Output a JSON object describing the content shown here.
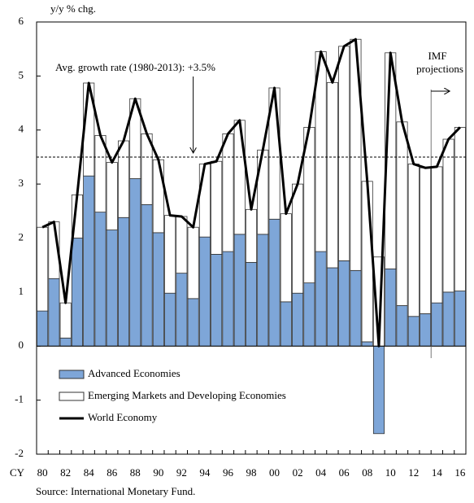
{
  "chart_data": {
    "type": "stacked-bar-line",
    "y_axis_label": "y/y % chg.",
    "x_axis_prefix": "CY",
    "annotation": "Avg. growth rate (1980-2013): +3.5%",
    "avg_line": 3.5,
    "projection_label": "IMF projections",
    "source": "Source:  International  Monetary Fund.",
    "categories": [
      "80",
      null,
      "82",
      null,
      "84",
      null,
      "86",
      null,
      "88",
      null,
      "90",
      null,
      "92",
      null,
      "94",
      null,
      "96",
      null,
      "98",
      null,
      "00",
      null,
      "02",
      null,
      "04",
      null,
      "06",
      null,
      "08",
      null,
      "10",
      null,
      "12",
      null,
      "14",
      null,
      "16"
    ],
    "series": [
      {
        "name": "Advanced Economies",
        "color": "#7ea6d8",
        "kind": "bar",
        "values": [
          0.65,
          1.25,
          0.15,
          2.0,
          3.15,
          2.48,
          2.15,
          2.38,
          3.1,
          2.62,
          2.1,
          0.98,
          1.35,
          0.88,
          2.02,
          1.7,
          1.75,
          2.07,
          1.55,
          2.07,
          2.35,
          0.82,
          0.98,
          1.17,
          1.75,
          1.45,
          1.58,
          1.4,
          0.08,
          -1.62,
          1.43,
          0.75,
          0.55,
          0.6,
          0.8,
          1.0,
          1.02
        ]
      },
      {
        "name": "Emerging Markets and Developing Economies",
        "color": "#ffffff",
        "kind": "bar",
        "values": [
          1.55,
          1.05,
          0.65,
          0.8,
          1.72,
          1.42,
          1.25,
          1.42,
          1.48,
          1.31,
          1.35,
          1.44,
          1.05,
          1.32,
          1.35,
          1.72,
          2.18,
          2.11,
          0.98,
          1.56,
          2.43,
          1.63,
          2.02,
          2.88,
          3.7,
          3.43,
          3.97,
          4.28,
          2.97,
          1.65,
          4.0,
          3.4,
          2.82,
          2.7,
          2.52,
          2.83,
          3.03
        ]
      },
      {
        "name": "World Economy",
        "color": "#000000",
        "kind": "line",
        "values": [
          2.2,
          2.3,
          0.8,
          2.8,
          4.87,
          3.9,
          3.4,
          3.8,
          4.58,
          3.93,
          3.45,
          2.42,
          2.4,
          2.2,
          3.37,
          3.42,
          3.93,
          4.18,
          2.53,
          3.63,
          4.78,
          2.45,
          3.0,
          4.05,
          5.45,
          4.88,
          5.55,
          5.68,
          3.05,
          0.0,
          5.43,
          4.15,
          3.37,
          3.3,
          3.32,
          3.83,
          4.05
        ]
      }
    ],
    "ylim": [
      -2,
      6
    ],
    "yticks": [
      -2,
      -1,
      0,
      1,
      2,
      3,
      4,
      5,
      6
    ],
    "grid": false
  }
}
